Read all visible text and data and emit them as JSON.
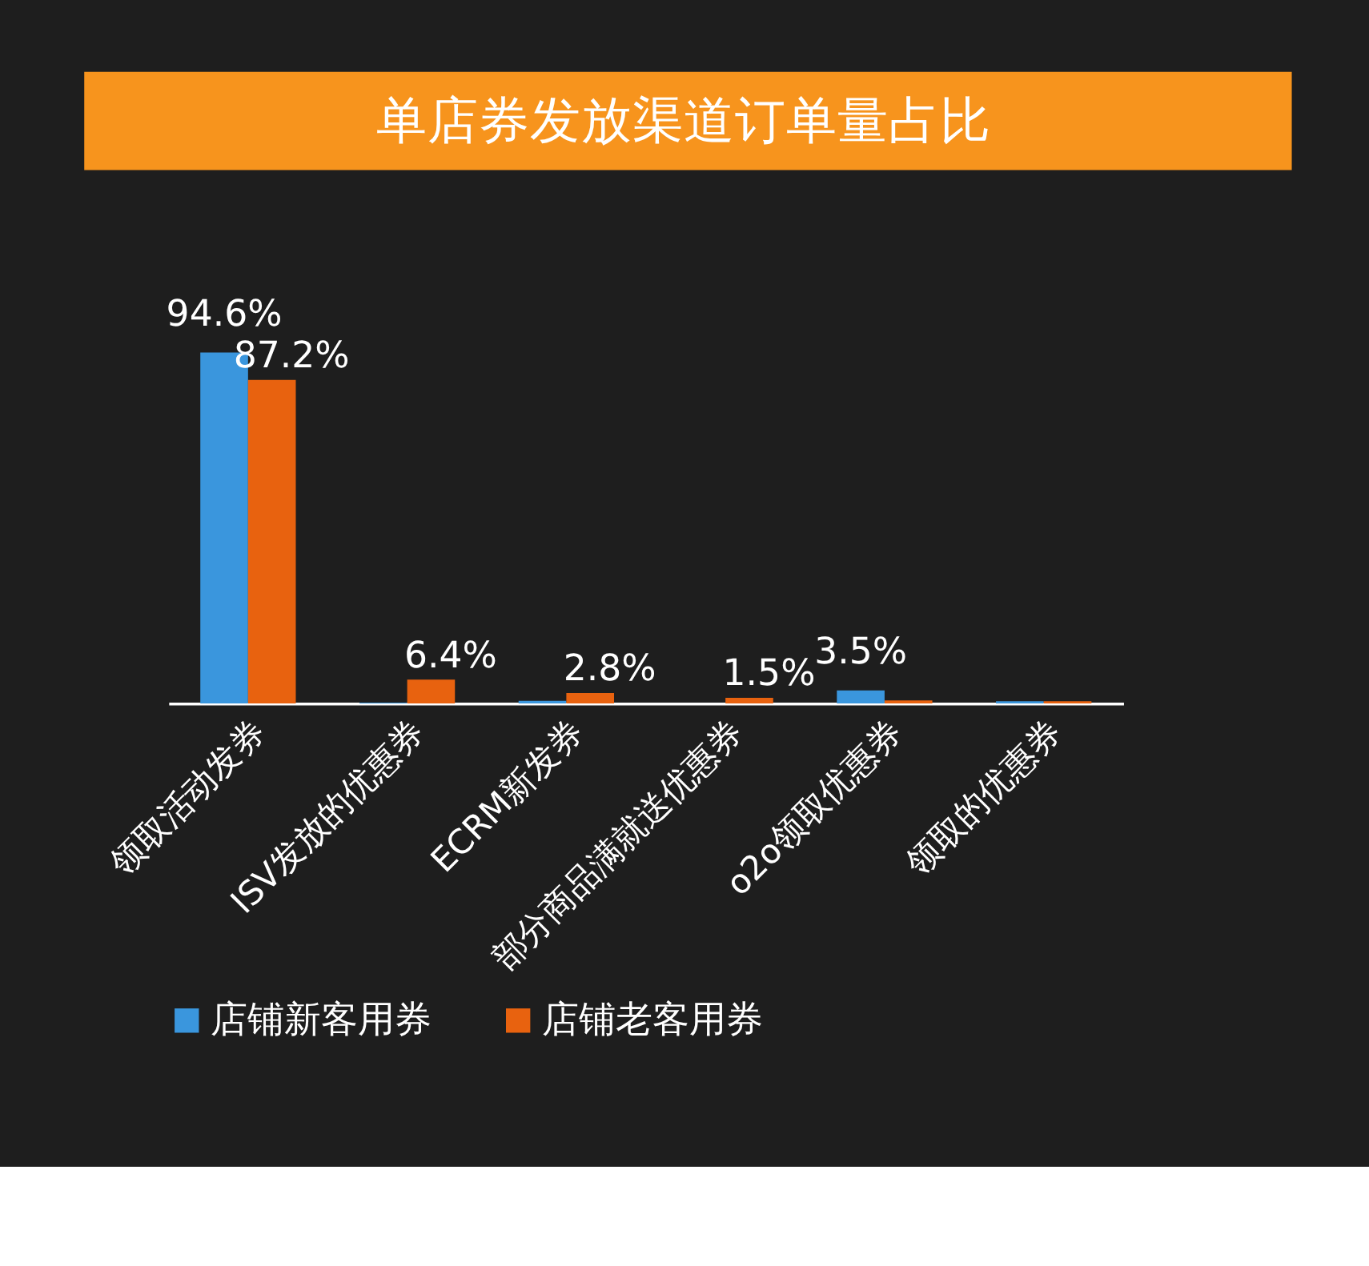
{
  "chart_data": {
    "type": "bar",
    "title": "单店券发放渠道订单量占比",
    "categories": [
      "领取活动发券",
      "ISV发放的优惠券",
      "ECRM新发券",
      "部分商品满就送优惠券",
      "o2o领取优惠券",
      "领取的优惠券"
    ],
    "series": [
      {
        "name": "店铺新客用券",
        "color": "#3a96dd",
        "values": [
          94.6,
          0.2,
          0.7,
          null,
          3.5,
          0.6
        ],
        "value_labels": [
          "94.6%",
          null,
          null,
          null,
          "3.5%",
          null
        ]
      },
      {
        "name": "店铺老客用券",
        "color": "#e8620f",
        "values": [
          87.2,
          6.4,
          2.8,
          1.5,
          0.8,
          0.6
        ],
        "value_labels": [
          "87.2%",
          "6.4%",
          "2.8%",
          "1.5%",
          null,
          null
        ]
      }
    ],
    "legend": "bottom"
  }
}
